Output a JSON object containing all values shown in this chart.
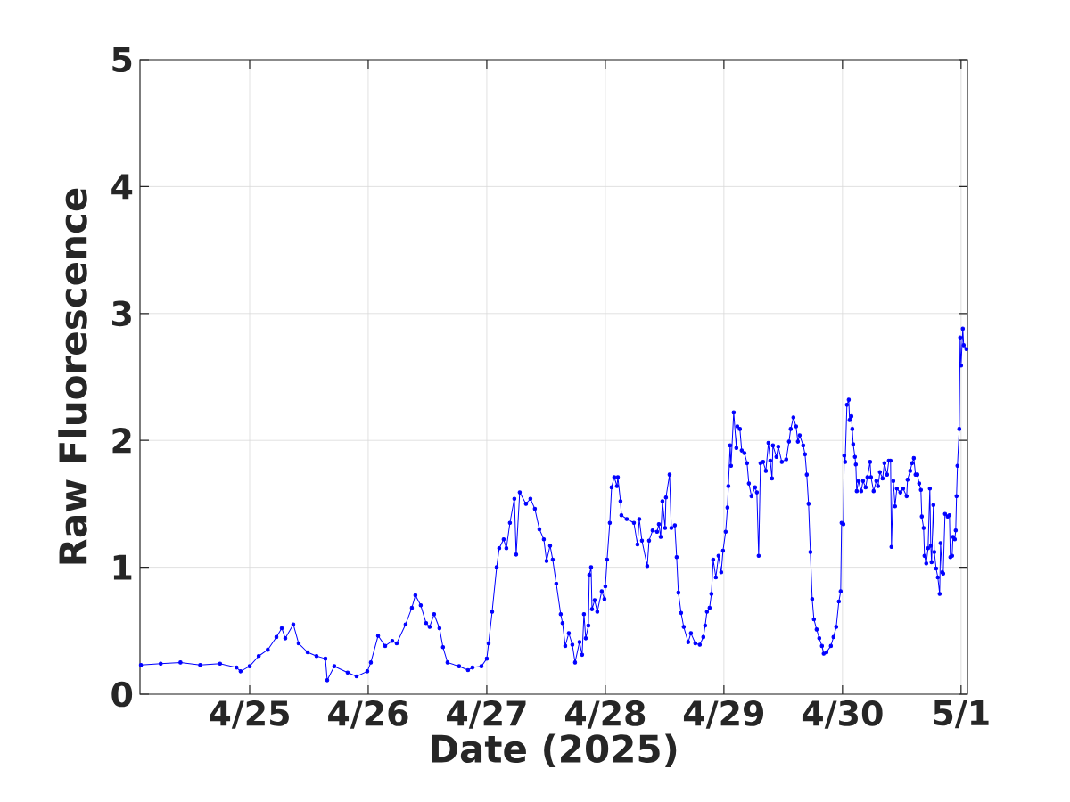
{
  "chart_data": {
    "type": "line",
    "xlabel": "Date (2025)",
    "ylabel": "Raw Fluorescence",
    "color": "#0000ff",
    "marker": "circle",
    "line_style": "solid",
    "grid": true,
    "xlim": [
      "2025-04-24T01:48",
      "2025-05-01T01:18"
    ],
    "ylim": [
      0,
      5
    ],
    "yticks": [
      0,
      1,
      2,
      3,
      4,
      5
    ],
    "xticks": [
      {
        "value": "2025-04-25",
        "label": "4/25"
      },
      {
        "value": "2025-04-26",
        "label": "4/26"
      },
      {
        "value": "2025-04-27",
        "label": "4/27"
      },
      {
        "value": "2025-04-28",
        "label": "4/28"
      },
      {
        "value": "2025-04-29",
        "label": "4/29"
      },
      {
        "value": "2025-04-30",
        "label": "4/30"
      },
      {
        "value": "2025-05-01",
        "label": "5/1"
      }
    ],
    "x": [
      "2025-04-24T02:00",
      "2025-04-24T06:00",
      "2025-04-24T10:00",
      "2025-04-24T14:00",
      "2025-04-24T18:00",
      "2025-04-24T21:20",
      "2025-04-24T22:10",
      "2025-04-25T00:00",
      "2025-04-25T01:50",
      "2025-04-25T03:40",
      "2025-04-25T05:25",
      "2025-04-25T06:30",
      "2025-04-25T07:13",
      "2025-04-25T08:50",
      "2025-04-25T09:55",
      "2025-04-25T11:44",
      "2025-04-25T13:32",
      "2025-04-25T15:20",
      "2025-04-25T15:42",
      "2025-04-25T17:08",
      "2025-04-25T19:50",
      "2025-04-25T21:39",
      "2025-04-25T23:49",
      "2025-04-26T00:32",
      "2025-04-26T02:00",
      "2025-04-26T03:26",
      "2025-04-26T04:52",
      "2025-04-26T05:46",
      "2025-04-26T07:34",
      "2025-04-26T08:50",
      "2025-04-26T09:33",
      "2025-04-26T10:38",
      "2025-04-26T11:43",
      "2025-04-26T12:26",
      "2025-04-26T13:20",
      "2025-04-26T14:25",
      "2025-04-26T15:08",
      "2025-04-26T16:03",
      "2025-04-26T18:24",
      "2025-04-26T20:12",
      "2025-04-26T21:06",
      "2025-04-26T22:55",
      "2025-04-27T00:00",
      "2025-04-27T00:22",
      "2025-04-27T01:05",
      "2025-04-27T02:00",
      "2025-04-27T02:31",
      "2025-04-27T03:25",
      "2025-04-27T03:58",
      "2025-04-27T04:41",
      "2025-04-27T05:35",
      "2025-04-27T05:57",
      "2025-04-27T06:40",
      "2025-04-27T07:56",
      "2025-04-27T08:50",
      "2025-04-27T09:44",
      "2025-04-27T10:39",
      "2025-04-27T11:33",
      "2025-04-27T12:06",
      "2025-04-27T12:49",
      "2025-04-27T13:21",
      "2025-04-27T14:04",
      "2025-04-27T14:58",
      "2025-04-27T15:20",
      "2025-04-27T15:53",
      "2025-04-27T16:36",
      "2025-04-27T17:19",
      "2025-04-27T17:52",
      "2025-04-27T18:46",
      "2025-04-27T19:18",
      "2025-04-27T19:40",
      "2025-04-27T20:02",
      "2025-04-27T20:34",
      "2025-04-27T20:45",
      "2025-04-27T21:07",
      "2025-04-27T21:18",
      "2025-04-27T21:50",
      "2025-04-27T22:22",
      "2025-04-27T23:16",
      "2025-04-27T23:49",
      "2025-04-28T00:00",
      "2025-04-28T00:21",
      "2025-04-28T00:54",
      "2025-04-28T01:16",
      "2025-04-28T01:48",
      "2025-04-28T02:21",
      "2025-04-28T02:32",
      "2025-04-28T03:04",
      "2025-04-28T03:15",
      "2025-04-28T04:20",
      "2025-04-28T05:47",
      "2025-04-28T06:30",
      "2025-04-28T06:52",
      "2025-04-28T07:24",
      "2025-04-28T08:29",
      "2025-04-28T08:51",
      "2025-04-28T09:34",
      "2025-04-28T10:28",
      "2025-04-28T10:50",
      "2025-04-28T11:12",
      "2025-04-28T11:33",
      "2025-04-28T12:06",
      "2025-04-28T12:16",
      "2025-04-28T13:00",
      "2025-04-28T13:21",
      "2025-04-28T14:04",
      "2025-04-28T14:26",
      "2025-04-28T14:47",
      "2025-04-28T15:20",
      "2025-04-28T15:52",
      "2025-04-28T16:46",
      "2025-04-28T17:19",
      "2025-04-28T18:13",
      "2025-04-28T19:07",
      "2025-04-28T19:50",
      "2025-04-28T20:12",
      "2025-04-28T20:34",
      "2025-04-28T21:06",
      "2025-04-28T21:28",
      "2025-04-28T21:50",
      "2025-04-28T22:22",
      "2025-04-28T22:55",
      "2025-04-28T23:27",
      "2025-04-28T23:49",
      "2025-04-29T00:21",
      "2025-04-29T00:43",
      "2025-04-29T00:54",
      "2025-04-29T01:16",
      "2025-04-29T01:26",
      "2025-04-29T01:59",
      "2025-04-29T02:31",
      "2025-04-29T02:42",
      "2025-04-29T03:14",
      "2025-04-29T03:36",
      "2025-04-29T04:09",
      "2025-04-29T04:41",
      "2025-04-29T05:03",
      "2025-04-29T05:35",
      "2025-04-29T06:18",
      "2025-04-29T06:40",
      "2025-04-29T07:02",
      "2025-04-29T07:24",
      "2025-04-29T07:56",
      "2025-04-29T08:29",
      "2025-04-29T09:01",
      "2025-04-29T09:23",
      "2025-04-29T09:44",
      "2025-04-29T09:55",
      "2025-04-29T10:38",
      "2025-04-29T11:00",
      "2025-04-29T11:43",
      "2025-04-29T12:37",
      "2025-04-29T13:10",
      "2025-04-29T13:31",
      "2025-04-29T14:04",
      "2025-04-29T14:36",
      "2025-04-29T14:58",
      "2025-04-29T15:20",
      "2025-04-29T16:03",
      "2025-04-29T16:25",
      "2025-04-29T16:46",
      "2025-04-29T17:08",
      "2025-04-29T17:30",
      "2025-04-29T17:52",
      "2025-04-29T18:13",
      "2025-04-29T18:46",
      "2025-04-29T19:18",
      "2025-04-29T19:50",
      "2025-04-29T20:12",
      "2025-04-29T20:45",
      "2025-04-29T21:39",
      "2025-04-29T22:11",
      "2025-04-29T22:44",
      "2025-04-29T23:16",
      "2025-04-29T23:38",
      "2025-04-29T23:49",
      "2025-04-30T00:11",
      "2025-04-30T00:21",
      "2025-04-30T00:32",
      "2025-04-30T00:54",
      "2025-04-30T01:16",
      "2025-04-30T01:26",
      "2025-04-30T01:48",
      "2025-04-30T01:59",
      "2025-04-30T02:10",
      "2025-04-30T02:31",
      "2025-04-30T02:42",
      "2025-04-30T02:53",
      "2025-04-30T03:14",
      "2025-04-30T03:47",
      "2025-04-30T04:09",
      "2025-04-30T04:41",
      "2025-04-30T05:03",
      "2025-04-30T05:35",
      "2025-04-30T05:46",
      "2025-04-30T06:18",
      "2025-04-30T06:51",
      "2025-04-30T07:12",
      "2025-04-30T07:34",
      "2025-04-30T08:07",
      "2025-04-30T08:29",
      "2025-04-30T09:01",
      "2025-04-30T09:23",
      "2025-04-30T09:44",
      "2025-04-30T09:55",
      "2025-04-30T10:17",
      "2025-04-30T10:38",
      "2025-04-30T11:00",
      "2025-04-30T11:43",
      "2025-04-30T12:16",
      "2025-04-30T12:59",
      "2025-04-30T13:10",
      "2025-04-30T13:42",
      "2025-04-30T14:04",
      "2025-04-30T14:26",
      "2025-04-30T14:47",
      "2025-04-30T15:09",
      "2025-04-30T15:31",
      "2025-04-30T15:52",
      "2025-04-30T16:03",
      "2025-04-30T16:25",
      "2025-04-30T16:36",
      "2025-04-30T16:57",
      "2025-04-30T17:19",
      "2025-04-30T17:41",
      "2025-04-30T17:52",
      "2025-04-30T18:02",
      "2025-04-30T18:24",
      "2025-04-30T18:35",
      "2025-04-30T18:57",
      "2025-04-30T19:18",
      "2025-04-30T19:40",
      "2025-04-30T19:51",
      "2025-04-30T20:12",
      "2025-04-30T20:23",
      "2025-04-30T20:45",
      "2025-04-30T21:17",
      "2025-04-30T21:39",
      "2025-04-30T21:50",
      "2025-04-30T22:11",
      "2025-04-30T22:22",
      "2025-04-30T22:44",
      "2025-04-30T22:55",
      "2025-04-30T23:05",
      "2025-04-30T23:16",
      "2025-04-30T23:38",
      "2025-04-30T23:49",
      "2025-05-01T00:00",
      "2025-05-01T00:21",
      "2025-05-01T00:32",
      "2025-05-01T01:05"
    ],
    "values": [
      0.23,
      0.24,
      0.25,
      0.23,
      0.24,
      0.21,
      0.18,
      0.22,
      0.3,
      0.35,
      0.45,
      0.52,
      0.44,
      0.55,
      0.4,
      0.33,
      0.3,
      0.28,
      0.11,
      0.22,
      0.17,
      0.14,
      0.18,
      0.25,
      0.46,
      0.38,
      0.42,
      0.4,
      0.55,
      0.68,
      0.78,
      0.7,
      0.56,
      0.53,
      0.63,
      0.52,
      0.37,
      0.25,
      0.22,
      0.19,
      0.21,
      0.22,
      0.28,
      0.4,
      0.65,
      1.0,
      1.15,
      1.22,
      1.15,
      1.35,
      1.54,
      1.1,
      1.59,
      1.5,
      1.54,
      1.46,
      1.3,
      1.22,
      1.05,
      1.17,
      1.06,
      0.87,
      0.63,
      0.56,
      0.38,
      0.48,
      0.39,
      0.25,
      0.41,
      0.31,
      0.63,
      0.44,
      0.54,
      0.94,
      1.0,
      0.67,
      0.74,
      0.65,
      0.81,
      0.75,
      0.85,
      1.06,
      1.35,
      1.63,
      1.71,
      1.64,
      1.71,
      1.52,
      1.41,
      1.38,
      1.35,
      1.18,
      1.38,
      1.21,
      1.01,
      1.21,
      1.29,
      1.28,
      1.34,
      1.24,
      1.52,
      1.31,
      1.55,
      1.73,
      1.31,
      1.33,
      1.08,
      0.8,
      0.64,
      0.53,
      0.41,
      0.48,
      0.4,
      0.39,
      0.45,
      0.54,
      0.65,
      0.68,
      0.79,
      1.06,
      0.92,
      1.09,
      0.96,
      1.13,
      1.28,
      1.47,
      1.64,
      1.96,
      1.8,
      2.22,
      1.94,
      2.11,
      2.09,
      1.92,
      1.9,
      1.82,
      1.66,
      1.56,
      1.63,
      1.59,
      1.09,
      1.82,
      1.83,
      1.76,
      1.98,
      1.84,
      1.7,
      1.96,
      1.87,
      1.95,
      1.83,
      1.85,
      1.99,
      2.09,
      2.18,
      2.11,
      1.99,
      2.04,
      1.96,
      1.89,
      1.73,
      1.5,
      1.12,
      0.75,
      0.59,
      0.51,
      0.44,
      0.38,
      0.32,
      0.33,
      0.38,
      0.45,
      0.53,
      0.73,
      0.81,
      1.35,
      1.34,
      1.88,
      1.83,
      2.28,
      2.32,
      2.16,
      2.19,
      2.09,
      1.97,
      1.87,
      1.81,
      1.6,
      1.68,
      1.6,
      1.68,
      1.63,
      1.71,
      1.83,
      1.71,
      1.6,
      1.68,
      1.64,
      1.75,
      1.7,
      1.82,
      1.73,
      1.84,
      1.84,
      1.16,
      1.68,
      1.48,
      1.62,
      1.59,
      1.62,
      1.56,
      1.69,
      1.76,
      1.82,
      1.86,
      1.73,
      1.73,
      1.66,
      1.61,
      1.4,
      1.31,
      1.09,
      1.03,
      1.15,
      1.62,
      1.17,
      1.04,
      1.49,
      1.12,
      0.99,
      0.92,
      0.79,
      1.19,
      0.96,
      0.95,
      1.42,
      1.4,
      1.41,
      1.08,
      1.09,
      1.24,
      1.22,
      1.29,
      1.56,
      1.8,
      2.09,
      2.81,
      2.59,
      2.88,
      2.75,
      2.72
    ]
  }
}
